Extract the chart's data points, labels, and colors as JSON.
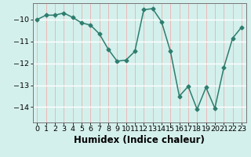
{
  "x": [
    0,
    1,
    2,
    3,
    4,
    5,
    6,
    7,
    8,
    9,
    10,
    11,
    12,
    13,
    14,
    15,
    16,
    17,
    18,
    19,
    20,
    21,
    22,
    23
  ],
  "y": [
    -10.0,
    -9.8,
    -9.8,
    -9.7,
    -9.9,
    -10.15,
    -10.25,
    -10.65,
    -11.35,
    -11.9,
    -11.85,
    -11.45,
    -9.55,
    -9.5,
    -10.1,
    -11.45,
    -13.5,
    -13.05,
    -14.1,
    -13.1,
    -14.05,
    -12.2,
    -10.85,
    -10.35
  ],
  "line_color": "#2e7d6e",
  "marker": "D",
  "marker_size": 2.5,
  "xlabel": "Humidex (Indice chaleur)",
  "xlim": [
    -0.5,
    23.5
  ],
  "ylim": [
    -14.7,
    -9.25
  ],
  "yticks": [
    -14,
    -13,
    -12,
    -11,
    -10
  ],
  "xticks": [
    0,
    1,
    2,
    3,
    4,
    5,
    6,
    7,
    8,
    9,
    10,
    11,
    12,
    13,
    14,
    15,
    16,
    17,
    18,
    19,
    20,
    21,
    22,
    23
  ],
  "bg_color": "#d4f0ec",
  "grid_h_color": "#ffffff",
  "grid_v_color": "#e8b8b8",
  "axes_color": "#777777",
  "label_fontsize": 8.5,
  "tick_fontsize": 6.8,
  "linewidth": 1.1
}
